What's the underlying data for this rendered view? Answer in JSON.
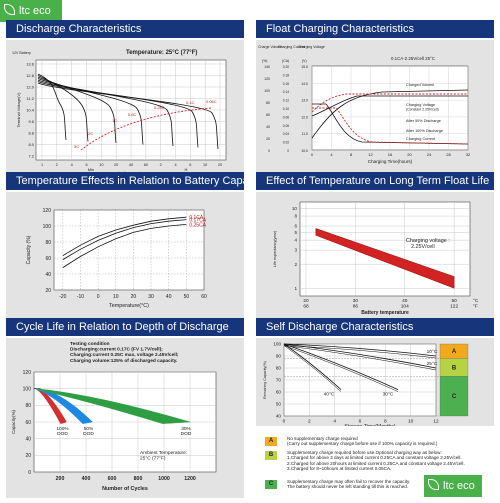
{
  "brand": {
    "text": "ltc eco",
    "color": "#49b04a"
  },
  "header_color": "#16357a",
  "panels": [
    {
      "title": "Discharge Characteristics",
      "chart_data": {
        "type": "line",
        "annotation": "Temperature: 25°C (77°F)",
        "ylabel": "Terminal Voltage(V)",
        "y_unit": "12V Battery",
        "xlabel": "Discharge Time",
        "y_ticks": [
          "13.6",
          "12.8",
          "12.0",
          "11.2",
          "10.4",
          "9.6",
          "8.8",
          "8.0",
          "7.2"
        ],
        "x_ticks": [
          "1",
          "2",
          "4",
          "6",
          "10",
          "20",
          "40",
          "60",
          "2",
          "4",
          "6",
          "10",
          "20"
        ],
        "x_unit_labels": [
          "Min",
          "H"
        ],
        "curve_labels": [
          "3C",
          "2C",
          "1C",
          "0.6C",
          "0.25C",
          "0.1C",
          "0.05C"
        ]
      }
    },
    {
      "title": "Float Charging Characteristics",
      "chart_data": {
        "type": "line",
        "annotation": "0.1CA-2.25V/cell 25°C",
        "column_headers": [
          "Charge Volume",
          "Charging Current",
          "Charging Voltage"
        ],
        "y_units": [
          "(%)",
          "(CA)",
          "(V)"
        ],
        "y_ticks_volume": [
          "140",
          "120",
          "100",
          "80",
          "60",
          "40",
          "20",
          "0"
        ],
        "y_ticks_current": [
          "0.20",
          "0.18",
          "0.16",
          "0.14",
          "0.12",
          "0.10",
          "0.08",
          "0.06",
          "0.04",
          "0.02",
          "0"
        ],
        "y_ticks_voltage": [
          "15.0",
          "14.0",
          "13.0",
          "12.0",
          "11.0",
          "10.0"
        ],
        "x_ticks": [
          "0",
          "4",
          "8",
          "12",
          "16",
          "20",
          "24",
          "28",
          "32"
        ],
        "xlabel": "Charging Time(hours)",
        "curve_labels": [
          "Charged Volume",
          "Charging Voltage (Constant 2.25V/cell)",
          "After 50% Discharge",
          "After 100% Discharge",
          "Charging Current"
        ]
      }
    },
    {
      "title": "Temperature Effects in Relation to Battery Capacity",
      "chart_data": {
        "type": "line",
        "ylabel": "Capacity (%)",
        "xlabel": "Temperature(°C)",
        "x_ticks": [
          -20,
          -10,
          0,
          10,
          20,
          30,
          40,
          50,
          60
        ],
        "y_ticks": [
          20,
          40,
          60,
          80,
          100,
          120
        ],
        "xlim": [
          -25,
          60
        ],
        "ylim": [
          20,
          120
        ],
        "series": [
          {
            "name": "0.1CA",
            "x": [
              -20,
              -10,
              0,
              10,
              20,
              30,
              40,
              50
            ],
            "values": [
              63,
              76,
              87,
              95,
              101,
              106,
              109,
              111
            ]
          },
          {
            "name": "0.17CA",
            "x": [
              -20,
              -10,
              0,
              10,
              20,
              30,
              40,
              50
            ],
            "values": [
              58,
              71,
              82,
              91,
              98,
              103,
              106,
              108
            ]
          },
          {
            "name": "0.25CA",
            "x": [
              -20,
              -10,
              0,
              10,
              20,
              30,
              40,
              50
            ],
            "values": [
              48,
              62,
              74,
              84,
              92,
              97,
              100,
              102
            ]
          }
        ]
      }
    },
    {
      "title": "Effect of Temperature on Long Term Float Life",
      "chart_data": {
        "type": "area",
        "ylabel": "Life expectancy(year)",
        "xlabel": "Battery temperature",
        "x_ticks_c": [
          "20",
          "30",
          "40",
          "50"
        ],
        "x_ticks_f": [
          "68",
          "86",
          "104",
          "122"
        ],
        "x_units": [
          "°C",
          "°F"
        ],
        "y_ticks": [
          1,
          2,
          3,
          4,
          5,
          6,
          8,
          10
        ],
        "annotation": "Charging voltage : 2.25V/cell",
        "band": {
          "x": [
            22,
            50
          ],
          "upper": [
            5.6,
            1.4
          ],
          "lower": [
            4.6,
            1.0
          ]
        },
        "band_color": "#d22222"
      }
    },
    {
      "title": "Cycle Life in Relation to Depth of Discharge",
      "chart_data": {
        "type": "area",
        "conditions": [
          "Testing condition",
          "Discharging:current 0.17C (FV 1.7V/cell);",
          "Charging:current 0.25C max, voltage 2.45V/cell;",
          "Charging volume:125% of discharged capacity."
        ],
        "ylabel": "Capacity(%)",
        "xlabel": "Number of Cycles",
        "y_ticks": [
          0,
          20,
          40,
          60,
          80,
          100,
          120
        ],
        "x_ticks": [
          200,
          400,
          600,
          800,
          1000,
          1200
        ],
        "xlim": [
          0,
          1400
        ],
        "ylim": [
          0,
          120
        ],
        "ambient": [
          "Ambient Temperature:",
          "25°C (77°F)"
        ],
        "series": [
          {
            "name": "100% DOD",
            "color": "#d32f2f",
            "x": [
              0,
              100,
              250
            ],
            "values": [
              100,
              100,
              60
            ]
          },
          {
            "name": "50% DOD",
            "color": "#1e88e5",
            "x": [
              0,
              200,
              450
            ],
            "values": [
              100,
              98,
              60
            ]
          },
          {
            "name": "30% DOD",
            "color": "#2e9e44",
            "x": [
              0,
              500,
              1200
            ],
            "values": [
              100,
              92,
              60
            ]
          }
        ]
      }
    },
    {
      "title": "Self Discharge Characteristics",
      "chart_data": {
        "type": "line",
        "ylabel": "Remaining Capacity(%)",
        "xlabel": "Storage Time(Months)",
        "x_ticks": [
          0,
          2,
          4,
          6,
          8,
          10,
          12
        ],
        "y_ticks": [
          40,
          50,
          60,
          70,
          80,
          90,
          100
        ],
        "xlim": [
          0,
          12
        ],
        "ylim": [
          40,
          100
        ],
        "series": [
          {
            "name": "10°C",
            "x": [
              0,
              12
            ],
            "values": [
              100,
              90
            ]
          },
          {
            "name": "25°C",
            "x": [
              0,
              12
            ],
            "values": [
              100,
              80
            ]
          },
          {
            "name": "30°C",
            "x": [
              0,
              9
            ],
            "values": [
              100,
              62
            ]
          },
          {
            "name": "40°C",
            "x": [
              0,
              4.5
            ],
            "values": [
              100,
              62
            ]
          }
        ],
        "zones": [
          {
            "label": "A",
            "color": "#f2a91e",
            "range": [
              88,
              100
            ]
          },
          {
            "label": "B",
            "color": "#b7d342",
            "range": [
              73,
              88
            ]
          },
          {
            "label": "C",
            "color": "#4caf50",
            "range": [
              40,
              73
            ]
          }
        ]
      }
    }
  ],
  "self_discharge_legend": [
    {
      "label": "A",
      "color": "#f2a91e",
      "lines": [
        "No supplementary charge required",
        "(Carry out supplementary charge before use if 100% capacity is required.)"
      ]
    },
    {
      "label": "B",
      "color": "#b7d342",
      "lines": [
        "Supplementary charge required before use.Optional charging way as below:",
        "1.Charged for above 3 days at limited current 0.25CA and constant voltage 2.25V/cell.",
        "2.Charged for above 20hours at limited current 0.25CA and constant voltage 2.45V/cell.",
        "3.Charged for 8~10hours at limited current 0.05CA."
      ]
    },
    {
      "label": "C",
      "color": "#4caf50",
      "lines": [
        "Supplementary charge may often fail to recover the capacity.",
        "The battery should never be left standing till this is reached."
      ]
    }
  ]
}
